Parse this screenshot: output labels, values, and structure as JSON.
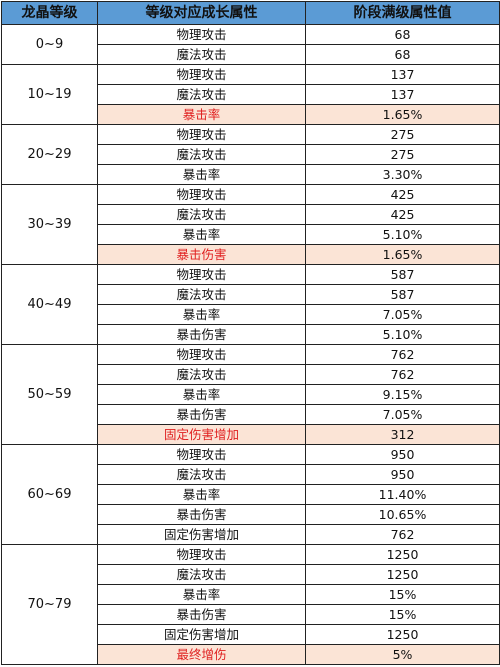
{
  "headers": [
    "龙晶等级",
    "等级对应成长属性",
    "阶段满级属性值"
  ],
  "groups": [
    {
      "level": "0~9",
      "rows": [
        {
          "attr": "物理攻击",
          "value": "68",
          "highlight": false
        },
        {
          "attr": "魔法攻击",
          "value": "68",
          "highlight": false
        }
      ]
    },
    {
      "level": "10~19",
      "rows": [
        {
          "attr": "物理攻击",
          "value": "137",
          "highlight": false
        },
        {
          "attr": "魔法攻击",
          "value": "137",
          "highlight": false
        },
        {
          "attr": "暴击率",
          "value": "1.65%",
          "highlight": true
        }
      ]
    },
    {
      "level": "20~29",
      "rows": [
        {
          "attr": "物理攻击",
          "value": "275",
          "highlight": false
        },
        {
          "attr": "魔法攻击",
          "value": "275",
          "highlight": false
        },
        {
          "attr": "暴击率",
          "value": "3.30%",
          "highlight": false
        }
      ]
    },
    {
      "level": "30~39",
      "rows": [
        {
          "attr": "物理攻击",
          "value": "425",
          "highlight": false
        },
        {
          "attr": "魔法攻击",
          "value": "425",
          "highlight": false
        },
        {
          "attr": "暴击率",
          "value": "5.10%",
          "highlight": false
        },
        {
          "attr": "暴击伤害",
          "value": "1.65%",
          "highlight": true
        }
      ]
    },
    {
      "level": "40~49",
      "rows": [
        {
          "attr": "物理攻击",
          "value": "587",
          "highlight": false
        },
        {
          "attr": "魔法攻击",
          "value": "587",
          "highlight": false
        },
        {
          "attr": "暴击率",
          "value": "7.05%",
          "highlight": false
        },
        {
          "attr": "暴击伤害",
          "value": "5.10%",
          "highlight": false
        }
      ]
    },
    {
      "level": "50~59",
      "rows": [
        {
          "attr": "物理攻击",
          "value": "762",
          "highlight": false
        },
        {
          "attr": "魔法攻击",
          "value": "762",
          "highlight": false
        },
        {
          "attr": "暴击率",
          "value": "9.15%",
          "highlight": false
        },
        {
          "attr": "暴击伤害",
          "value": "7.05%",
          "highlight": false
        },
        {
          "attr": "固定伤害增加",
          "value": "312",
          "highlight": true
        }
      ]
    },
    {
      "level": "60~69",
      "rows": [
        {
          "attr": "物理攻击",
          "value": "950",
          "highlight": false
        },
        {
          "attr": "魔法攻击",
          "value": "950",
          "highlight": false
        },
        {
          "attr": "暴击率",
          "value": "11.40%",
          "highlight": false
        },
        {
          "attr": "暴击伤害",
          "value": "10.65%",
          "highlight": false
        },
        {
          "attr": "固定伤害增加",
          "value": "762",
          "highlight": false
        }
      ]
    },
    {
      "level": "70~79",
      "rows": [
        {
          "attr": "物理攻击",
          "value": "1250",
          "highlight": false
        },
        {
          "attr": "魔法攻击",
          "value": "1250",
          "highlight": false
        },
        {
          "attr": "暴击率",
          "value": "15%",
          "highlight": false
        },
        {
          "attr": "暴击伤害",
          "value": "15%",
          "highlight": false
        },
        {
          "attr": "固定伤害增加",
          "value": "1250",
          "highlight": false
        },
        {
          "attr": "最终增伤",
          "value": "5%",
          "highlight": true
        }
      ]
    }
  ]
}
